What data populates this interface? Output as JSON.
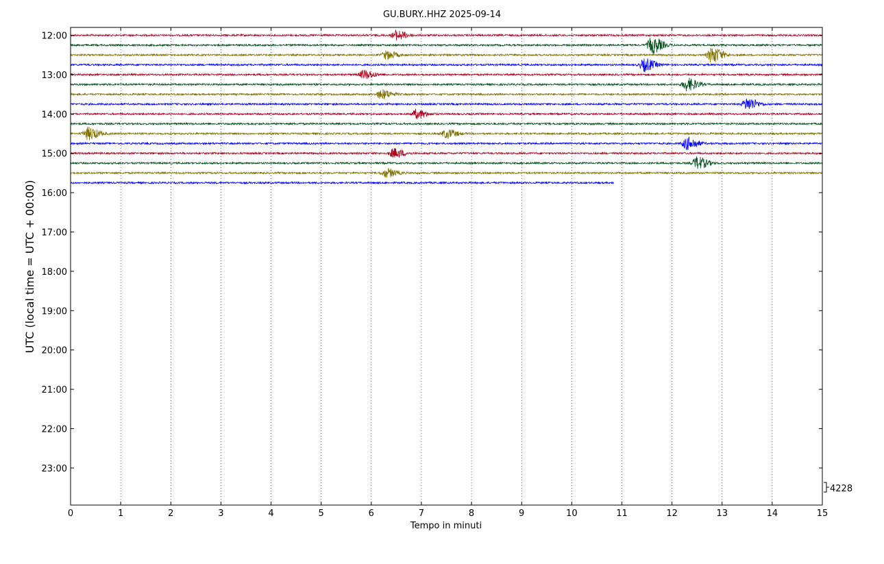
{
  "chart_data": {
    "type": "line",
    "title": "GU.BURY..HHZ 2025-09-14",
    "xlabel": "Tempo in minuti",
    "ylabel": "UTC (local time = UTC + 00:00)",
    "xlim": [
      0,
      15
    ],
    "x_ticks": [
      "0",
      "1",
      "2",
      "3",
      "4",
      "5",
      "6",
      "7",
      "8",
      "9",
      "10",
      "11",
      "12",
      "13",
      "14",
      "15"
    ],
    "y_hour_labels": [
      "12:00",
      "13:00",
      "14:00",
      "15:00",
      "16:00",
      "17:00",
      "18:00",
      "19:00",
      "20:00",
      "21:00",
      "22:00",
      "23:00"
    ],
    "grid": "vertical dotted",
    "scale_label": "4228",
    "trace_colors": [
      "#b0001c",
      "#00501c",
      "#807000",
      "#0000ff"
    ],
    "traces": [
      {
        "start": "12:00",
        "color": "#b0001c",
        "end_minute": 15,
        "events": [
          {
            "minute": 6.5,
            "amp": 0.75
          }
        ]
      },
      {
        "start": "12:15",
        "color": "#00501c",
        "end_minute": 15,
        "events": [
          {
            "minute": 11.6,
            "amp": 1.3
          }
        ]
      },
      {
        "start": "12:30",
        "color": "#807000",
        "end_minute": 15,
        "events": [
          {
            "minute": 6.3,
            "amp": 0.65
          },
          {
            "minute": 12.8,
            "amp": 1.3
          }
        ]
      },
      {
        "start": "12:45",
        "color": "#0000ff",
        "end_minute": 15,
        "events": [
          {
            "minute": 11.45,
            "amp": 1.0
          }
        ]
      },
      {
        "start": "13:00",
        "color": "#b0001c",
        "end_minute": 15,
        "events": [
          {
            "minute": 5.85,
            "amp": 0.7
          }
        ]
      },
      {
        "start": "13:15",
        "color": "#00501c",
        "end_minute": 15,
        "events": [
          {
            "minute": 12.3,
            "amp": 1.0
          }
        ]
      },
      {
        "start": "13:30",
        "color": "#807000",
        "end_minute": 15,
        "events": [
          {
            "minute": 6.2,
            "amp": 0.75
          }
        ]
      },
      {
        "start": "13:45",
        "color": "#0000ff",
        "end_minute": 15,
        "events": [
          {
            "minute": 13.5,
            "amp": 1.0
          }
        ]
      },
      {
        "start": "14:00",
        "color": "#b0001c",
        "end_minute": 15,
        "events": [
          {
            "minute": 6.9,
            "amp": 0.7
          }
        ]
      },
      {
        "start": "14:15",
        "color": "#00501c",
        "end_minute": 15,
        "events": []
      },
      {
        "start": "14:30",
        "color": "#807000",
        "end_minute": 15,
        "events": [
          {
            "minute": 0.35,
            "amp": 1.0
          },
          {
            "minute": 7.5,
            "amp": 0.7
          }
        ]
      },
      {
        "start": "14:45",
        "color": "#0000ff",
        "end_minute": 15,
        "events": [
          {
            "minute": 12.3,
            "amp": 1.0
          }
        ]
      },
      {
        "start": "15:00",
        "color": "#b0001c",
        "end_minute": 15,
        "events": [
          {
            "minute": 6.45,
            "amp": 0.75
          }
        ]
      },
      {
        "start": "15:15",
        "color": "#00501c",
        "end_minute": 15,
        "events": [
          {
            "minute": 12.5,
            "amp": 1.0
          }
        ]
      },
      {
        "start": "15:30",
        "color": "#807000",
        "end_minute": 15,
        "events": [
          {
            "minute": 6.3,
            "amp": 0.7
          }
        ]
      },
      {
        "start": "15:45",
        "color": "#0000ff",
        "end_minute": 10.85,
        "events": []
      }
    ]
  }
}
